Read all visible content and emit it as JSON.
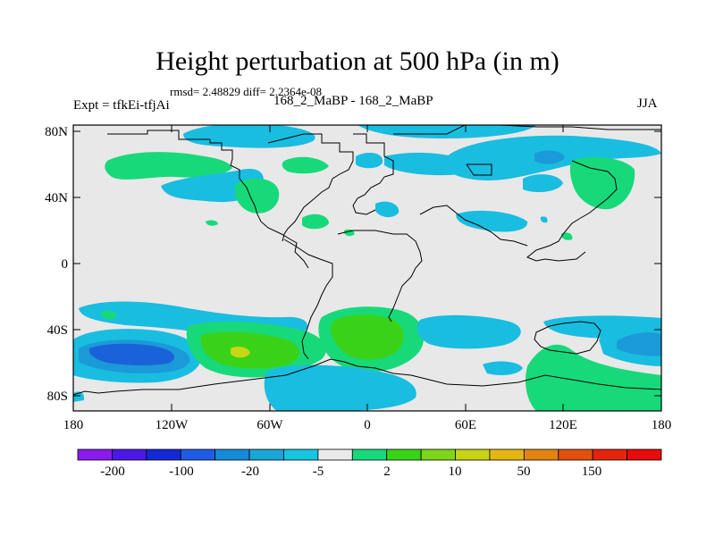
{
  "title": "Height perturbation at 500 hPa (in m)",
  "stats_line": "rmsd= 2.48829 diff= 2.2364e-08",
  "left_label": "Expt = tfkEi-tfjAi",
  "center_label": "168_2_MaBP - 168_2_MaBP",
  "right_label": "JJA",
  "lat_ticks": [
    "80N",
    "40N",
    "0",
    "40S",
    "80S"
  ],
  "lon_ticks": [
    "180",
    "120W",
    "60W",
    "0",
    "60E",
    "120E",
    "180"
  ],
  "colorbar": {
    "colors": [
      "#8b1aef",
      "#4b18e8",
      "#1428d8",
      "#1e5ce6",
      "#168ad8",
      "#19a6d6",
      "#17c5e0",
      "#eaeaea",
      "#17d97a",
      "#38d418",
      "#7ed618",
      "#c6d316",
      "#e5b613",
      "#e3840f",
      "#e3500d",
      "#e4250b",
      "#e70b0b"
    ],
    "labels": [
      "-200",
      "-100",
      "-20",
      "-5",
      "2",
      "10",
      "50",
      "150"
    ]
  },
  "map": {
    "background_color": "#e8e8e8",
    "field_colors": {
      "light_blue": "#19bde0",
      "mid_blue": "#1a9ad8",
      "blue": "#1a62d9",
      "light_green": "#17d97a",
      "green": "#3ad218",
      "yellow_green": "#c9d615"
    }
  }
}
